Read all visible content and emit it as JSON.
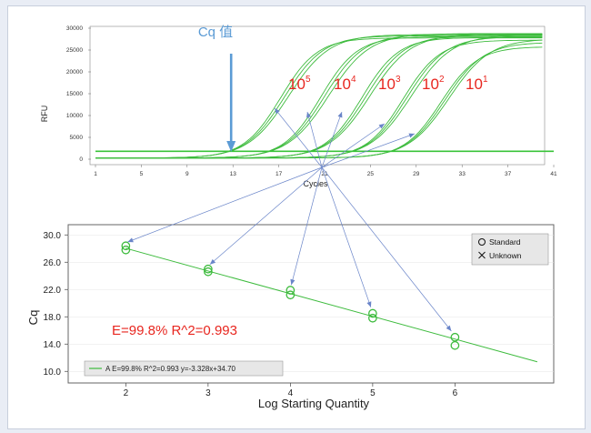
{
  "chart_data": [
    {
      "type": "line",
      "ylabel": "RFU",
      "xlabel": "Cycles",
      "xlim": [
        1,
        41
      ],
      "ylim": [
        0,
        30000
      ],
      "x_ticks": [
        "1",
        "5",
        "9",
        "13",
        "17",
        "21",
        "25",
        "29",
        "33",
        "37",
        "41"
      ],
      "y_ticks": [
        "0",
        "5000",
        "10000",
        "15000",
        "20000",
        "25000",
        "30000"
      ],
      "threshold_rfu": 1800,
      "cq_annotation": {
        "label": "Cq 值",
        "cycle": 13
      },
      "series": [
        {
          "label_base": "10",
          "label_exp": "5",
          "midpoint": 17.5,
          "replicates": [
            27500,
            28000,
            28300
          ]
        },
        {
          "label_base": "10",
          "label_exp": "4",
          "midpoint": 21.0,
          "replicates": [
            27800,
            28300,
            28500
          ]
        },
        {
          "label_base": "10",
          "label_exp": "3",
          "midpoint": 24.6,
          "replicates": [
            27600,
            28100,
            28400
          ]
        },
        {
          "label_base": "10",
          "label_exp": "2",
          "midpoint": 28.2,
          "replicates": [
            27000,
            27800,
            28200
          ]
        },
        {
          "label_base": "10",
          "label_exp": "1",
          "midpoint": 31.5,
          "replicates": [
            25500,
            26500,
            27300
          ]
        }
      ]
    },
    {
      "type": "scatter",
      "xlabel": "Log Starting Quantity",
      "ylabel": "Cq",
      "xlim": [
        1.3,
        7.2
      ],
      "ylim": [
        8.3,
        31.5
      ],
      "x_ticks": [
        "2",
        "3",
        "4",
        "5",
        "6"
      ],
      "y_ticks": [
        "10.0",
        "14.0",
        "18.0",
        "22.0",
        "26.0",
        "30.0"
      ],
      "points": [
        {
          "x": 2,
          "y": [
            28.4,
            27.8
          ]
        },
        {
          "x": 3,
          "y": [
            25.0,
            24.6
          ]
        },
        {
          "x": 4,
          "y": [
            21.9,
            21.2
          ]
        },
        {
          "x": 5,
          "y": [
            18.5,
            17.8
          ]
        },
        {
          "x": 6,
          "y": [
            15.0,
            13.8
          ]
        }
      ],
      "fit": {
        "slope": -3.328,
        "intercept": 34.7,
        "x_range": [
          2,
          7
        ]
      },
      "efficiency_text": "E=99.8%  R^2=0.993",
      "legend": [
        "Standard",
        "Unknown"
      ],
      "fit_legend": "A E=99.8% R^2=0.993 y=-3.328x+34.70"
    }
  ],
  "colors": {
    "curve": "#3dbb3d",
    "threshold": "#39c339",
    "arrow": "#6a85c9",
    "label_red": "#e8261f",
    "cq_blue": "#5b9bd5"
  }
}
